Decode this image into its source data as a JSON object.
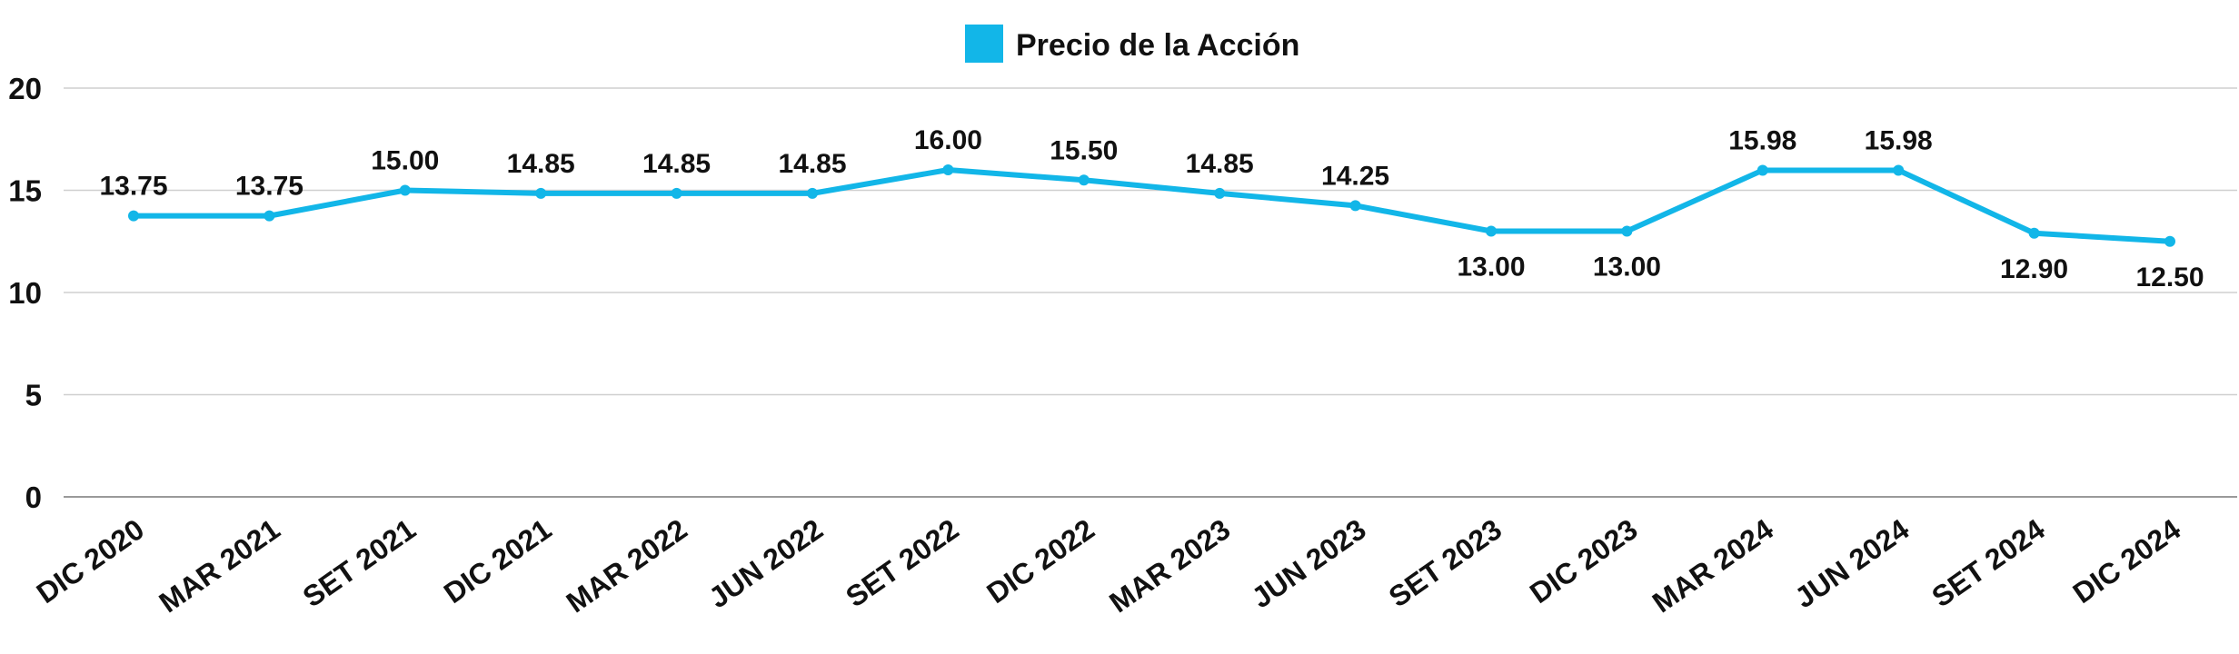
{
  "chart_data": {
    "type": "line",
    "title": "",
    "xlabel": "",
    "ylabel": "",
    "categories": [
      "DIC 2020",
      "MAR 2021",
      "SET 2021",
      "DIC 2021",
      "MAR 2022",
      "JUN 2022",
      "SET 2022",
      "DIC 2022",
      "MAR 2023",
      "JUN 2023",
      "SET 2023",
      "DIC 2023",
      "MAR 2024",
      "JUN 2024",
      "SET 2024",
      "DIC 2024"
    ],
    "series": [
      {
        "name": "Precio de la Acción",
        "color": "#12b6e8",
        "values": [
          13.75,
          13.75,
          15.0,
          14.85,
          14.85,
          14.85,
          16.0,
          15.5,
          14.85,
          14.25,
          13.0,
          13.0,
          15.98,
          15.98,
          12.9,
          12.5
        ],
        "data_labels": [
          "13.75",
          "13.75",
          "15.00",
          "14.85",
          "14.85",
          "14.85",
          "16.00",
          "15.50",
          "14.85",
          "14.25",
          "13.00",
          "13.00",
          "15.98",
          "15.98",
          "12.90",
          "12.50"
        ],
        "label_position": [
          "above",
          "above",
          "above",
          "above",
          "above",
          "above",
          "above",
          "above",
          "above",
          "above",
          "below",
          "below",
          "above",
          "above",
          "below",
          "below"
        ]
      }
    ],
    "ylim": [
      0,
      20
    ],
    "yticks": [
      0,
      5,
      10,
      15,
      20
    ],
    "ytick_labels": [
      "0",
      "5",
      "10",
      "15",
      "20"
    ],
    "grid": true,
    "legend_position": "top-center"
  }
}
